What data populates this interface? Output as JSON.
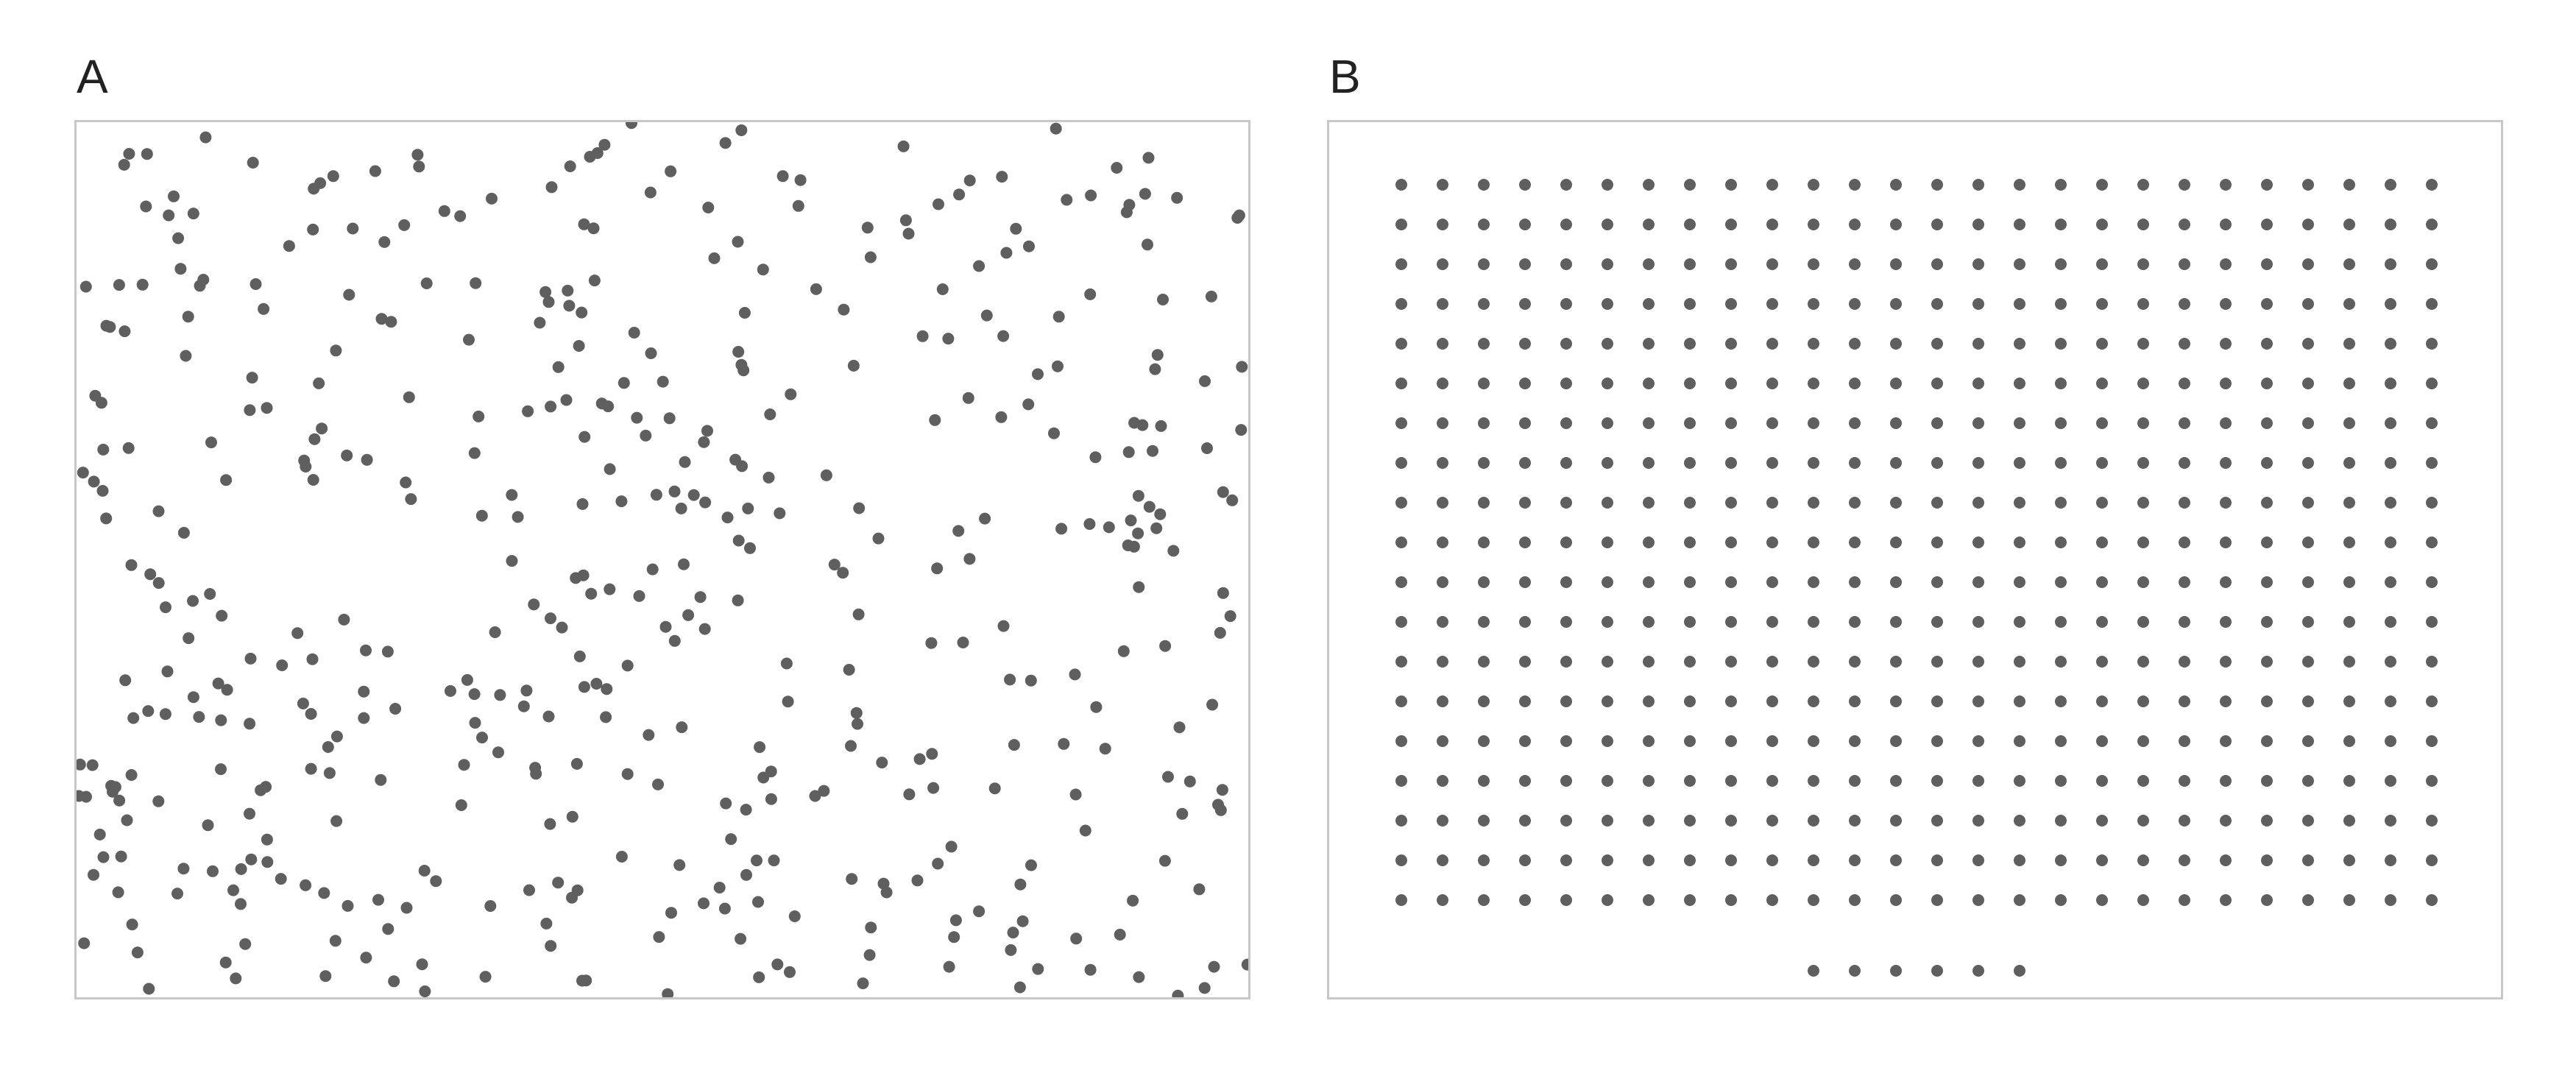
{
  "panels": [
    {
      "id": "A",
      "label": "A",
      "pattern": "random"
    },
    {
      "id": "B",
      "label": "B",
      "pattern": "grid"
    }
  ],
  "colors": {
    "dot": "#5f5f5f",
    "border": "#c8c8c8",
    "background": "#ffffff",
    "label": "#222222"
  }
}
